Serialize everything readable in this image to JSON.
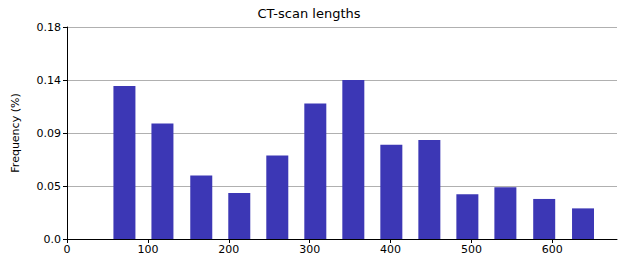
{
  "chart_data": {
    "type": "bar",
    "title": "CT-scan lengths",
    "y_label": "Frequency (%)",
    "x": [
      71,
      118,
      166,
      213,
      260,
      307,
      354,
      401,
      448,
      495,
      542,
      590,
      638
    ],
    "values": [
      0.13,
      0.098,
      0.054,
      0.039,
      0.071,
      0.115,
      0.135,
      0.08,
      0.084,
      0.038,
      0.044,
      0.034,
      0.026
    ],
    "color": "#3c37b5",
    "xlim": [
      0,
      680
    ],
    "xticks": [
      0,
      100,
      200,
      300,
      400,
      500,
      600
    ],
    "ylim": [
      0,
      0.18
    ],
    "yticks": [
      {
        "value": 0,
        "label": "0.0"
      },
      {
        "value": 0.045,
        "label": "0.05"
      },
      {
        "value": 0.09,
        "label": "0.09"
      },
      {
        "value": 0.135,
        "label": "0.14"
      },
      {
        "value": 0.18,
        "label": "0.18"
      }
    ],
    "grid": true
  }
}
